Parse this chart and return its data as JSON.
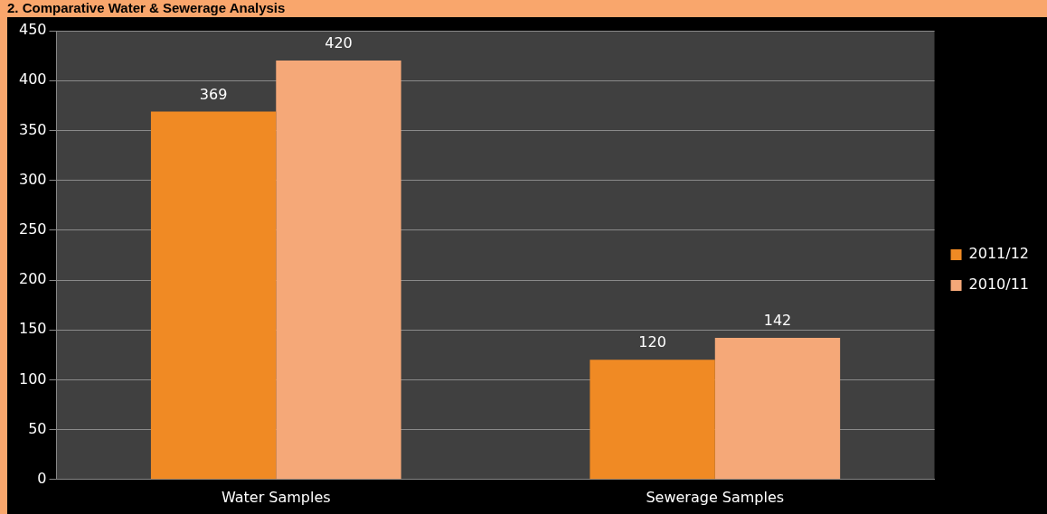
{
  "chart_data": {
    "type": "bar",
    "title": "2. Comparative Water & Sewerage Analysis",
    "categories": [
      "Water Samples",
      "Sewerage Samples"
    ],
    "series": [
      {
        "name": "2011/12",
        "color": "#f08a24",
        "values": [
          369,
          120
        ]
      },
      {
        "name": "2010/11",
        "color": "#f5a878",
        "values": [
          420,
          142
        ]
      }
    ],
    "ylim": [
      0,
      450
    ],
    "yticks": [
      0,
      50,
      100,
      150,
      200,
      250,
      300,
      350,
      400,
      450
    ],
    "grid": "y",
    "legend": "right",
    "data_labels": true
  }
}
